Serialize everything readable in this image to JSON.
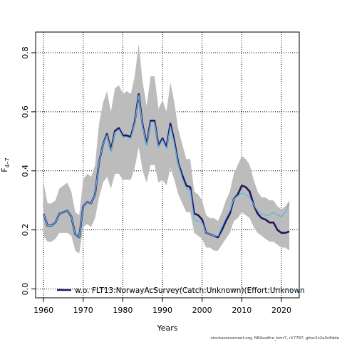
{
  "chart_data": {
    "type": "line",
    "title": "",
    "xlabel": "Years",
    "ylabel": "F",
    "ylabel_sub": "4–7",
    "xlim": [
      1958,
      2024.5
    ],
    "ylim": [
      -0.03,
      0.87
    ],
    "xticks": [
      1960,
      1970,
      1980,
      1990,
      2000,
      2010,
      2020
    ],
    "yticks": [
      0.0,
      0.2,
      0.4,
      0.6,
      0.8
    ],
    "ytick_labels": [
      "0.0",
      "0.2",
      "0.4",
      "0.6",
      "0.8"
    ],
    "grid": true,
    "legend_position": "bottom",
    "x": [
      1960,
      1961,
      1962,
      1963,
      1964,
      1965,
      1966,
      1967,
      1968,
      1969,
      1970,
      1971,
      1972,
      1973,
      1974,
      1975,
      1976,
      1977,
      1978,
      1979,
      1980,
      1981,
      1982,
      1983,
      1984,
      1985,
      1986,
      1987,
      1988,
      1989,
      1990,
      1991,
      1992,
      1993,
      1994,
      1995,
      1996,
      1997,
      1998,
      1999,
      2000,
      2001,
      2002,
      2003,
      2004,
      2005,
      2006,
      2007,
      2008,
      2009,
      2010,
      2011,
      2012,
      2013,
      2014,
      2015,
      2016,
      2017,
      2018,
      2019,
      2020,
      2021,
      2022
    ],
    "series": [
      {
        "name": "",
        "color": "#26165e",
        "values": [
          0.255,
          0.215,
          0.215,
          0.225,
          0.255,
          0.26,
          0.265,
          0.245,
          0.185,
          0.175,
          0.28,
          0.295,
          0.29,
          0.32,
          0.43,
          0.49,
          0.525,
          0.47,
          0.535,
          0.545,
          0.52,
          0.52,
          0.515,
          0.565,
          0.66,
          0.555,
          0.49,
          0.57,
          0.57,
          0.485,
          0.51,
          0.48,
          0.56,
          0.5,
          0.425,
          0.385,
          0.35,
          0.345,
          0.255,
          0.25,
          0.235,
          0.19,
          0.185,
          0.18,
          0.175,
          0.2,
          0.23,
          0.255,
          0.305,
          0.32,
          0.35,
          0.345,
          0.33,
          0.285,
          0.255,
          0.24,
          0.235,
          0.225,
          0.225,
          0.2,
          0.19,
          0.19,
          0.195
        ]
      },
      {
        "name": "w.o. FLT13:NorwayAcSurvey(Catch:Unknown)(Effort:Unknown",
        "color": "#5fb6e6",
        "values": [
          0.255,
          0.215,
          0.215,
          0.225,
          0.255,
          0.26,
          0.265,
          0.245,
          0.185,
          0.175,
          0.28,
          0.295,
          0.29,
          0.32,
          0.43,
          0.49,
          0.52,
          0.465,
          0.53,
          0.54,
          0.515,
          0.515,
          0.51,
          0.56,
          0.655,
          0.55,
          0.485,
          0.565,
          0.565,
          0.48,
          0.505,
          0.475,
          0.55,
          0.49,
          0.42,
          0.375,
          0.34,
          0.335,
          0.235,
          0.23,
          0.225,
          0.19,
          0.185,
          0.18,
          0.18,
          0.21,
          0.24,
          0.265,
          0.305,
          0.315,
          0.325,
          0.32,
          0.31,
          0.285,
          0.265,
          0.255,
          0.25,
          0.25,
          0.26,
          0.25,
          0.245,
          0.26,
          0.29
        ]
      }
    ],
    "band": {
      "upper": [
        0.36,
        0.29,
        0.29,
        0.3,
        0.34,
        0.35,
        0.36,
        0.33,
        0.26,
        0.25,
        0.37,
        0.39,
        0.38,
        0.42,
        0.56,
        0.63,
        0.67,
        0.6,
        0.68,
        0.69,
        0.66,
        0.67,
        0.66,
        0.72,
        0.83,
        0.7,
        0.62,
        0.72,
        0.72,
        0.61,
        0.64,
        0.6,
        0.7,
        0.63,
        0.54,
        0.49,
        0.44,
        0.44,
        0.33,
        0.32,
        0.3,
        0.25,
        0.24,
        0.24,
        0.23,
        0.26,
        0.3,
        0.33,
        0.39,
        0.42,
        0.45,
        0.44,
        0.42,
        0.37,
        0.33,
        0.31,
        0.31,
        0.3,
        0.3,
        0.28,
        0.27,
        0.28,
        0.3
      ],
      "lower": [
        0.18,
        0.16,
        0.16,
        0.17,
        0.19,
        0.19,
        0.19,
        0.18,
        0.13,
        0.12,
        0.21,
        0.22,
        0.21,
        0.24,
        0.31,
        0.36,
        0.38,
        0.34,
        0.39,
        0.39,
        0.37,
        0.37,
        0.37,
        0.41,
        0.48,
        0.4,
        0.36,
        0.42,
        0.42,
        0.36,
        0.37,
        0.35,
        0.41,
        0.37,
        0.32,
        0.29,
        0.26,
        0.26,
        0.19,
        0.18,
        0.17,
        0.14,
        0.14,
        0.13,
        0.13,
        0.15,
        0.17,
        0.19,
        0.23,
        0.24,
        0.26,
        0.25,
        0.24,
        0.21,
        0.19,
        0.18,
        0.17,
        0.16,
        0.16,
        0.15,
        0.14,
        0.14,
        0.13
      ]
    }
  },
  "footer": {
    "source_text": "stockassessment.org, NEAsaithe_bmr7, r17787, gitsc2c2a0c8dde"
  }
}
